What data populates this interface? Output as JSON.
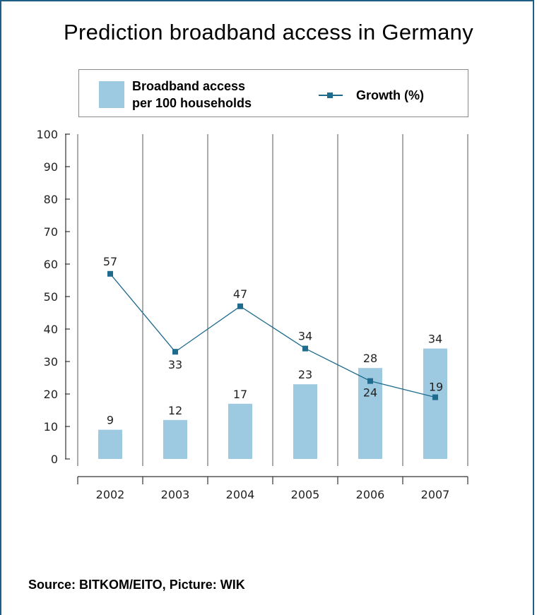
{
  "chart_data": {
    "type": "bar",
    "title": "Prediction broadband access in Germany",
    "categories": [
      "2002",
      "2003",
      "2004",
      "2005",
      "2006",
      "2007"
    ],
    "series": [
      {
        "name": "Broadband access per 100 households",
        "type": "bar",
        "values": [
          9,
          12,
          17,
          23,
          28,
          34
        ]
      },
      {
        "name": "Growth (%)",
        "type": "line",
        "values": [
          57,
          33,
          47,
          34,
          24,
          19
        ]
      }
    ],
    "legend": {
      "bar_label_line1": "Broadband access",
      "bar_label_line2": "per 100 households",
      "line_label": "Growth (%)",
      "position": "top"
    },
    "y_ticks": [
      "0",
      "10",
      "20",
      "30",
      "40",
      "50",
      "60",
      "70",
      "80",
      "90",
      "100"
    ],
    "ylim": [
      0,
      100
    ],
    "xlabel": "",
    "ylabel": "",
    "grid": "vertical-separators",
    "colors": {
      "bar": "#9ecae1",
      "line": "#1f6b8e",
      "frame": "#1f5f86"
    }
  },
  "source": "Source: BITKOM/EITO, Picture: WIK"
}
